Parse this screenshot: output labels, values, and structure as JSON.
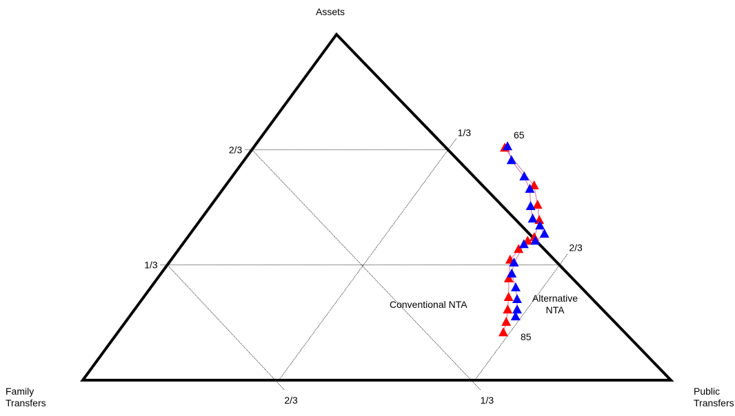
{
  "chart_data": {
    "type": "ternary",
    "axes": {
      "assets": "Assets",
      "family": "Family Transfers",
      "public": "Public Transfers"
    },
    "aticks": [
      {
        "value": 0.3333333,
        "label": "1/3"
      },
      {
        "value": 0.6666667,
        "label": "2/3"
      }
    ],
    "fticks": [
      {
        "value": 0.3333333,
        "label": "1/3"
      },
      {
        "value": 0.6666667,
        "label": "2/3"
      }
    ],
    "pticks": [
      {
        "value": 0.3333333,
        "label": "1/3"
      },
      {
        "value": 0.6666667,
        "label": "2/3"
      }
    ],
    "annotations": [
      "65",
      "85"
    ],
    "series": [
      {
        "name": "Conventional NTA",
        "color": "#ff0000",
        "assets": [
          0.671,
          0.562,
          0.506,
          0.462,
          0.412,
          0.402,
          0.378,
          0.347,
          0.293,
          0.239,
          0.203,
          0.167,
          0.137
        ],
        "public": [
          0.428,
          0.525,
          0.555,
          0.577,
          0.59,
          0.583,
          0.578,
          0.577,
          0.598,
          0.621,
          0.635,
          0.648,
          0.656
        ],
        "family": [
          -0.099,
          -0.087,
          -0.061,
          -0.039,
          -0.002,
          0.015,
          0.044,
          0.076,
          0.109,
          0.14,
          0.162,
          0.185,
          0.207
        ]
      },
      {
        "name": "Alternative NTA",
        "color": "#0000ff",
        "assets": [
          0.675,
          0.635,
          0.588,
          0.552,
          0.502,
          0.466,
          0.446,
          0.422,
          0.402,
          0.392,
          0.339,
          0.307,
          0.267,
          0.233,
          0.203,
          0.183
        ],
        "public": [
          0.431,
          0.455,
          0.497,
          0.522,
          0.545,
          0.564,
          0.585,
          0.603,
          0.596,
          0.581,
          0.587,
          0.597,
          0.621,
          0.638,
          0.651,
          0.657
        ],
        "family": [
          -0.106,
          -0.09,
          -0.085,
          -0.074,
          -0.047,
          -0.03,
          -0.031,
          -0.025,
          0.002,
          0.027,
          0.074,
          0.096,
          0.112,
          0.129,
          0.146,
          0.16
        ]
      }
    ]
  }
}
